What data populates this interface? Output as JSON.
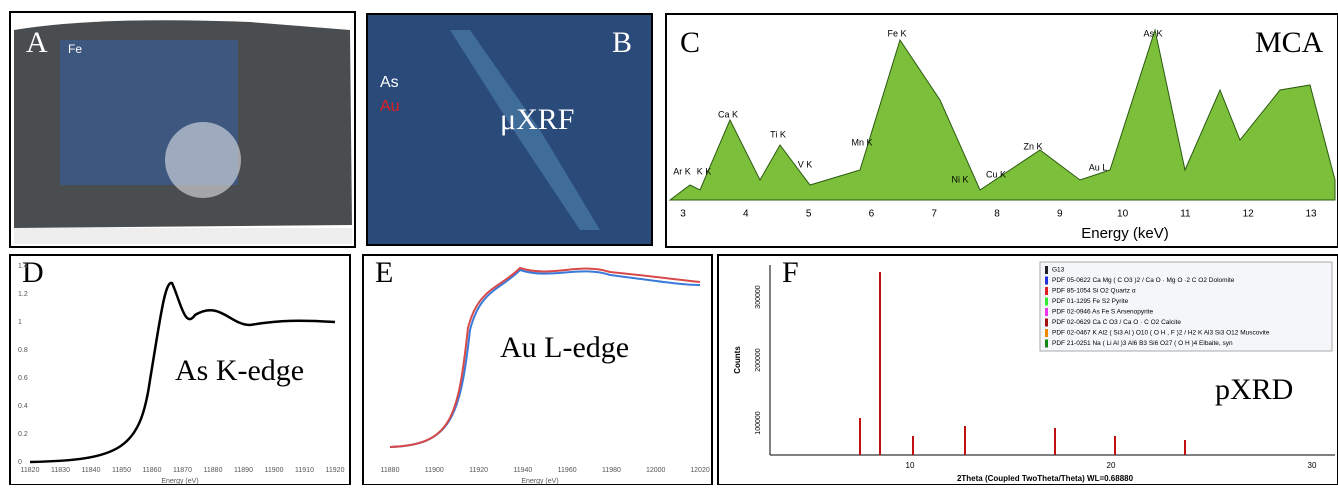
{
  "panels": {
    "a": {
      "label": "A",
      "element": "Fe"
    },
    "b": {
      "label": "B",
      "elements": [
        "As",
        "Au"
      ],
      "method": "μXRF"
    },
    "c": {
      "label": "C",
      "method": "MCA",
      "peaks": [
        "Ar K",
        "K K",
        "Ca K",
        "Ti K",
        "V K",
        "Mn K",
        "Fe K",
        "Ni K",
        "Cu K",
        "Zn K",
        "Au L",
        "As K"
      ],
      "xticks": [
        "3",
        "4",
        "5",
        "6",
        "7",
        "8",
        "9",
        "10",
        "11",
        "12",
        "13"
      ],
      "xlabel": "Energy (keV)"
    },
    "d": {
      "label": "D",
      "edge": "As K-edge",
      "yticks": [
        "0",
        "0.2",
        "0.4",
        "0.6",
        "0.8",
        "1",
        "1.2",
        "1.4"
      ],
      "xticks": [
        "11820",
        "11830",
        "11840",
        "11850",
        "11860",
        "11870",
        "11880",
        "11890",
        "11900",
        "11910",
        "11920"
      ],
      "xlabel": "Energy (eV)"
    },
    "e": {
      "label": "E",
      "edge": "Au L-edge",
      "xticks": [
        "11880",
        "11900",
        "11920",
        "11940",
        "11960",
        "11980",
        "12000",
        "12020"
      ],
      "xlabel": "Energy (eV)"
    },
    "f": {
      "label": "F",
      "method": "pXRD",
      "ylabel": "Counts",
      "yticks": [
        "100000",
        "200000",
        "300000"
      ],
      "xticks": [
        "10",
        "20",
        "30"
      ],
      "xlabel": "2Theta (Coupled TwoTheta/Theta) WL=0.68880",
      "legend": [
        {
          "text": "G13",
          "color": "#222"
        },
        {
          "text": "PDF 05-0622 Ca Mg ( C O3 )2 / Ca O · Mg O ·2 C O2 Dolomite",
          "color": "#2233dd"
        },
        {
          "text": "PDF 85-1054 Si O2 Quartz α",
          "color": "#e02020"
        },
        {
          "text": "PDF 01-1295 Fe S2 Pyrite",
          "color": "#33ee33"
        },
        {
          "text": "PDF 02-0946 As Fe S Arsenopyrite",
          "color": "#ee33ee"
        },
        {
          "text": "PDF 02-0629 Ca C O3 / Ca O · C O2 Calcite",
          "color": "#a01010"
        },
        {
          "text": "PDF 02-0467 K Al2 ( Si3 Al ) O10 ( O H , F )2 / H2 K Al3 Si3 O12 Muscovite",
          "color": "#ee8800"
        },
        {
          "text": "PDF 21-0251 Na ( Li Al )3 Al6 B3 Si6 O27 ( O H )4 Elbaite, syn",
          "color": "#118811"
        }
      ]
    }
  }
}
